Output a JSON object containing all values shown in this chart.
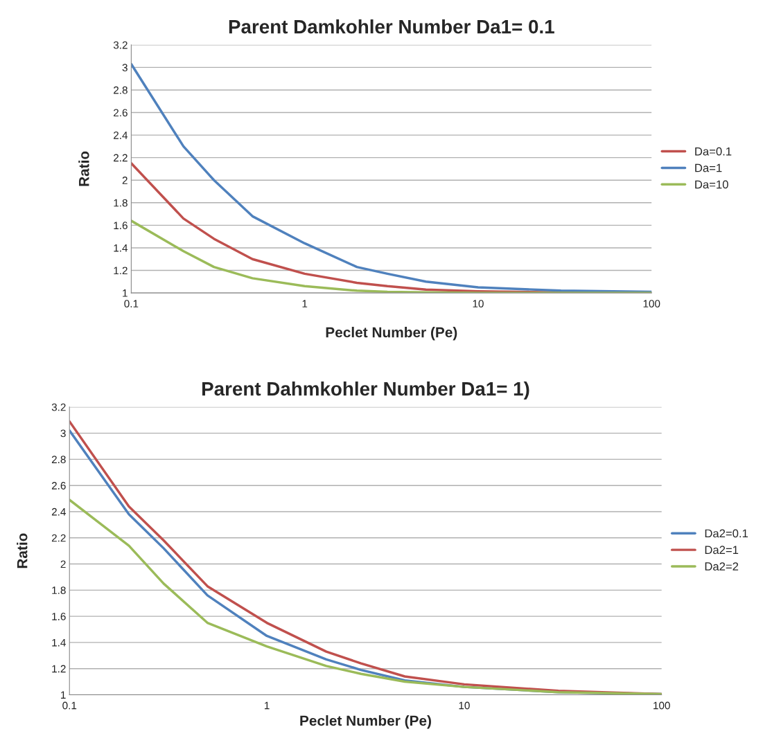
{
  "chart_data": [
    {
      "type": "line",
      "title": "Parent Damkohler Number Da1= 0.1",
      "xlabel": "Peclet Number (Pe)",
      "ylabel": "Ratio",
      "log": "x",
      "xlim": [
        0.1,
        100
      ],
      "xticks": [
        0.1,
        1,
        10,
        100
      ],
      "ylim": [
        1,
        3.2
      ],
      "yticks": [
        1,
        1.2,
        1.4,
        1.6,
        1.8,
        2,
        2.2,
        2.4,
        2.6,
        2.8,
        3,
        3.2
      ],
      "grid": "y",
      "legend": "right",
      "marker": "none",
      "line_style": "solid",
      "x": [
        0.1,
        0.2,
        0.3,
        0.5,
        1,
        2,
        3,
        5,
        10,
        30,
        100
      ],
      "series": [
        {
          "name": "Da=0.1",
          "color": "#c0504d",
          "values": [
            2.15,
            1.66,
            1.48,
            1.3,
            1.17,
            1.09,
            1.06,
            1.03,
            1.015,
            1.005,
            1.0
          ]
        },
        {
          "name": "Da=1",
          "color": "#4f81bd",
          "values": [
            3.03,
            2.3,
            2.0,
            1.68,
            1.44,
            1.23,
            1.17,
            1.1,
            1.05,
            1.02,
            1.01
          ]
        },
        {
          "name": "Da=10",
          "color": "#9bbb59",
          "values": [
            1.64,
            1.37,
            1.23,
            1.13,
            1.06,
            1.02,
            1.01,
            1.005,
            1.0,
            1.0,
            1.0
          ]
        }
      ]
    },
    {
      "type": "line",
      "title": "Parent Dahmkohler Number Da1= 1)",
      "xlabel": "Peclet Number (Pe)",
      "ylabel": "Ratio",
      "log": "x",
      "xlim": [
        0.1,
        100
      ],
      "xticks": [
        0.1,
        1,
        10,
        100
      ],
      "ylim": [
        1,
        3.2
      ],
      "yticks": [
        1,
        1.2,
        1.4,
        1.6,
        1.8,
        2,
        2.2,
        2.4,
        2.6,
        2.8,
        3,
        3.2
      ],
      "grid": "y",
      "legend": "right",
      "marker": "none",
      "line_style": "solid",
      "x": [
        0.1,
        0.2,
        0.3,
        0.5,
        1,
        2,
        3,
        5,
        10,
        30,
        100
      ],
      "series": [
        {
          "name": "Da2=0.1",
          "color": "#4f81bd",
          "values": [
            3.02,
            2.38,
            2.12,
            1.76,
            1.45,
            1.27,
            1.19,
            1.11,
            1.06,
            1.02,
            1.005
          ]
        },
        {
          "name": "Da2=1",
          "color": "#c0504d",
          "values": [
            3.09,
            2.44,
            2.18,
            1.83,
            1.55,
            1.33,
            1.24,
            1.14,
            1.08,
            1.03,
            1.005
          ]
        },
        {
          "name": "Da2=2",
          "color": "#9bbb59",
          "values": [
            2.49,
            2.14,
            1.85,
            1.55,
            1.37,
            1.22,
            1.16,
            1.1,
            1.06,
            1.02,
            1.005
          ]
        }
      ]
    }
  ]
}
